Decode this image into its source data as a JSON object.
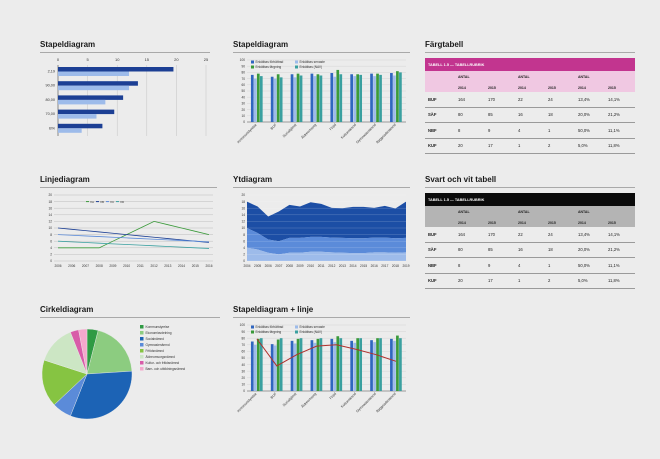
{
  "panels": {
    "p1_title": "Stapeldiagram",
    "p2_title": "Stapeldiagram",
    "p3_title": "Färgtabell",
    "p4_title": "Linjediagram",
    "p5_title": "Ytdiagram",
    "p6_title": "Svart och vit tabell",
    "p7_title": "Cirkeldiagram",
    "p8_title": "Stapeldiagram + linje"
  },
  "colors": {
    "navy": "#1c3f94",
    "blue": "#2f66c0",
    "mid": "#5b8bd9",
    "light": "#9dbbea",
    "green": "#3a9a3a",
    "lightgreen": "#8ccc80",
    "teal": "#3aa0a0",
    "red": "#b0302d",
    "pink": "#d85ca8",
    "magenta_banner": "#c2358f",
    "pink_row": "#f0c8e2"
  },
  "tables": {
    "color_table": {
      "banner": "TABELL 1.5 — TABELLRUBRIK",
      "group_headers": [
        "ANTAL",
        "ANTAL",
        "ANTAL"
      ],
      "year_headers": [
        "2014",
        "2015",
        "2014",
        "2015",
        "2014",
        "2015"
      ],
      "rows": [
        {
          "label": "BUF",
          "cells": [
            "164",
            "170",
            "22",
            "24",
            "13,4%",
            "14,1%"
          ]
        },
        {
          "label": "SÄF",
          "cells": [
            "80",
            "85",
            "16",
            "18",
            "20,0%",
            "21,2%"
          ]
        },
        {
          "label": "NBF",
          "cells": [
            "8",
            "9",
            "4",
            "1",
            "50,0%",
            "11,1%"
          ]
        },
        {
          "label": "KUF",
          "cells": [
            "20",
            "17",
            "1",
            "2",
            "5,0%",
            "11,8%"
          ]
        }
      ]
    },
    "bw_table": {
      "banner": "TABELL 1.5 — TABELLRUBRIK",
      "group_headers": [
        "ANTAL",
        "ANTAL",
        "ANTAL"
      ],
      "year_headers": [
        "2014",
        "2015",
        "2014",
        "2015",
        "2014",
        "2015"
      ],
      "rows": [
        {
          "label": "BUF",
          "cells": [
            "164",
            "170",
            "22",
            "24",
            "13,4%",
            "14,1%"
          ]
        },
        {
          "label": "SÄF",
          "cells": [
            "80",
            "85",
            "16",
            "18",
            "20,0%",
            "21,2%"
          ]
        },
        {
          "label": "NBF",
          "cells": [
            "8",
            "9",
            "4",
            "1",
            "50,0%",
            "11,1%"
          ]
        },
        {
          "label": "KUF",
          "cells": [
            "20",
            "17",
            "1",
            "2",
            "5,0%",
            "11,8%"
          ]
        }
      ]
    }
  },
  "chart_data": [
    {
      "type": "bar",
      "orientation": "horizontal",
      "categories": [
        "2,19",
        "90,00",
        "80,00",
        "70,00",
        "B%"
      ],
      "series": [
        {
          "values": [
            19.5,
            13.5,
            11,
            9.5,
            7.5
          ],
          "color": "#1c3f94"
        },
        {
          "values": [
            12,
            12,
            8,
            6.5,
            4
          ],
          "color": "#9dbbea"
        }
      ],
      "xlim": [
        0,
        25
      ],
      "xticks": [
        "0",
        "5",
        "10",
        "15",
        "20",
        "25"
      ],
      "grid": true
    },
    {
      "type": "bar",
      "categories": [
        "Kommunstyrelse",
        "BUF",
        "Socialtjänst",
        "Äldreomsorg",
        "Fritid",
        "Kulturnämnd",
        "Gymnasienämnd",
        "Byggnadsnämnd"
      ],
      "series": [
        {
          "name": "Enkätbas förbättrad",
          "values": [
            76,
            73,
            77,
            78,
            79,
            77,
            78,
            79
          ],
          "color": "#2f66c0"
        },
        {
          "name": "Enkätbas senaste",
          "values": [
            70,
            70,
            72,
            74,
            73,
            74,
            74,
            75
          ],
          "color": "#9dbbea"
        },
        {
          "name": "Enkätbas färgning",
          "values": [
            78,
            77,
            78,
            77,
            84,
            77,
            78,
            82
          ],
          "color": "#3a9a3a"
        },
        {
          "name": "Enkätbas (NAV)",
          "values": [
            74,
            72,
            75,
            75,
            77,
            76,
            76,
            80
          ],
          "color": "#3aa0a0"
        }
      ],
      "ylim": [
        0,
        100
      ],
      "yticks": [
        "0",
        "10",
        "20",
        "30",
        "40",
        "50",
        "60",
        "70",
        "80",
        "90",
        "100"
      ],
      "legend": "top-left"
    },
    {
      "type": "line",
      "x": [
        "2006",
        "2006",
        "2007",
        "2008",
        "2009",
        "2010",
        "2011",
        "2012",
        "2013",
        "2014",
        "2015",
        "2016"
      ],
      "series": [
        {
          "name": "XA",
          "values": [
            4,
            4,
            4,
            4,
            6,
            8,
            10,
            12,
            11,
            10,
            9,
            8
          ],
          "color": "#3a9a3a"
        },
        {
          "name": "XB",
          "values": [
            10,
            9.6,
            9.2,
            8.8,
            8.4,
            8,
            7.6,
            7.2,
            6.8,
            6.4,
            6,
            5.6
          ],
          "color": "#1c3f94"
        },
        {
          "name": "XC",
          "values": [
            8,
            7.8,
            7.6,
            7.4,
            7.2,
            7,
            6.8,
            6.6,
            6.4,
            6.2,
            6,
            5.8
          ],
          "color": "#5b8bd9"
        },
        {
          "name": "XD",
          "values": [
            6,
            5.8,
            5.6,
            5.4,
            5.2,
            5,
            4.8,
            4.6,
            4.4,
            4.2,
            4,
            3.8
          ],
          "color": "#3aa0a0"
        }
      ],
      "ylim": [
        0,
        20
      ],
      "yticks": [
        "0",
        "2",
        "4",
        "6",
        "8",
        "10",
        "12",
        "14",
        "16",
        "18",
        "20"
      ],
      "legend": "top-left",
      "grid": true
    },
    {
      "type": "area",
      "x": [
        "2004",
        "2005",
        "2006",
        "2007",
        "2008",
        "2009",
        "2010",
        "2011",
        "2012",
        "2013",
        "2014",
        "2015",
        "2016",
        "2017",
        "2018",
        "2019"
      ],
      "series": [
        {
          "values": [
            4,
            3.5,
            2.5,
            2,
            2.5,
            2.5,
            2.8,
            2.8,
            2.6,
            2.5,
            2.4,
            2.4,
            2.6,
            2.6,
            2.5,
            2.6
          ],
          "color": "#9dbbea"
        },
        {
          "values": [
            6,
            5,
            4,
            4,
            4.5,
            4.5,
            4.5,
            4.5,
            4.5,
            4.5,
            4.5,
            4.5,
            4.5,
            4.5,
            4.4,
            4.4
          ],
          "color": "#5b8bd9"
        },
        {
          "values": [
            8,
            8,
            7,
            9,
            10,
            9.5,
            10.5,
            10,
            9,
            9,
            9.5,
            9.5,
            9,
            9.6,
            9,
            11
          ],
          "color": "#1c4ea5"
        }
      ],
      "ylim": [
        0,
        20
      ],
      "yticks": [
        "0",
        "2",
        "4",
        "6",
        "8",
        "10",
        "12",
        "14",
        "16",
        "18",
        "20"
      ]
    },
    {
      "type": "pie",
      "slices": [
        {
          "name": "Kommunstyrelse",
          "value": 4,
          "color": "#2f9a43"
        },
        {
          "name": "Ekonomiavdelning",
          "value": 20,
          "color": "#8ccc80"
        },
        {
          "name": "Socialnämnd",
          "value": 32,
          "color": "#1c63b5"
        },
        {
          "name": "Gymnasienämnd",
          "value": 7,
          "color": "#5b8bd9"
        },
        {
          "name": "Fritidsnämnd",
          "value": 17,
          "color": "#86c442"
        },
        {
          "name": "Äldreomsorgsnämnd",
          "value": 14,
          "color": "#cce6c4"
        },
        {
          "name": "Kultur- och fritidsnämnd",
          "value": 3,
          "color": "#d85ca8"
        },
        {
          "name": "Barn- och utbildningsnämnd",
          "value": 3,
          "color": "#f4a8cc"
        }
      ]
    },
    {
      "type": "bar",
      "categories": [
        "Kommunstyrelse",
        "BUF",
        "Socialtjänst",
        "Äldreomsorg",
        "Fritid",
        "Kulturnämnd",
        "Gymnasienämnd",
        "Byggnadsnämnd"
      ],
      "series": [
        {
          "name": "Enkätbas förbättrad",
          "values": [
            75,
            71,
            76,
            77,
            79,
            76,
            77,
            79
          ],
          "color": "#2f66c0"
        },
        {
          "name": "Enkätbas senaste",
          "values": [
            70,
            69,
            72,
            73,
            74,
            73,
            74,
            76
          ],
          "color": "#9dbbea"
        },
        {
          "name": "Enkätbas färgning",
          "values": [
            79,
            78,
            79,
            79,
            83,
            80,
            80,
            84
          ],
          "color": "#3a9a3a"
        },
        {
          "name": "Enkätbas (NAV)",
          "values": [
            80,
            80,
            80,
            80,
            80,
            80,
            80,
            80
          ],
          "color": "#3aa0a0"
        }
      ],
      "line": {
        "values": [
          79,
          38,
          55,
          68,
          70,
          63,
          55,
          45
        ],
        "color": "#b0302d"
      },
      "ylim": [
        0,
        100
      ],
      "yticks": [
        "0",
        "10",
        "20",
        "30",
        "40",
        "50",
        "60",
        "70",
        "80",
        "90",
        "100"
      ],
      "legend": "top-left"
    }
  ]
}
